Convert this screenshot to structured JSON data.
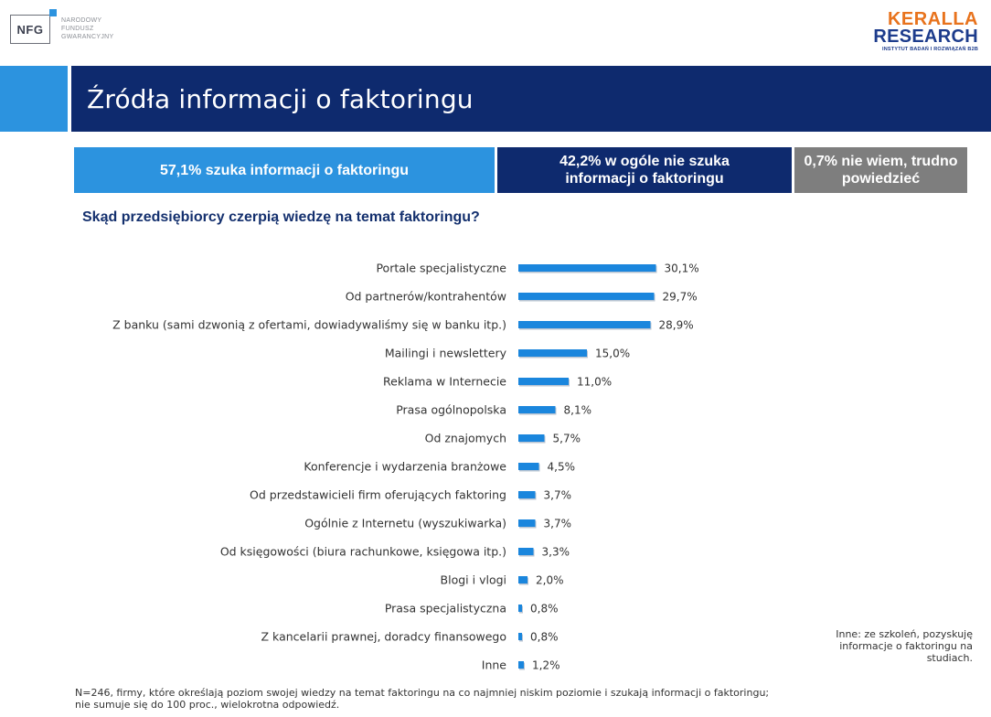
{
  "logo_nfg": {
    "abbr": "NFG",
    "lines": [
      "NARODOWY",
      "FUNDUSZ",
      "GWARANCYJNY"
    ]
  },
  "logo_keralla": {
    "line1": "KERALLA",
    "line2": "RESEARCH",
    "tagline": "INSTYTUT BADAŃ I ROZWIĄZAŃ B2B"
  },
  "colors": {
    "navy": "#0e2a6e",
    "blue": "#2c93df",
    "gray": "#7e7e7e",
    "bar": "#1a86dd"
  },
  "title": "Źródła informacji o faktoringu",
  "summary": [
    {
      "text": "57,1% szuka informacji o faktoringu"
    },
    {
      "text": "42,2% w ogóle nie szuka informacji o faktoringu"
    },
    {
      "text": "0,7% nie wiem, trudno powiedzieć"
    }
  ],
  "question": "Skąd przedsiębiorcy czerpią wiedzę na temat faktoringu?",
  "chart_data": {
    "type": "bar",
    "orientation": "horizontal",
    "categories": [
      "Portale specjalistyczne",
      "Od partnerów/kontrahentów",
      "Z banku (sami dzwonią z ofertami, dowiadywaliśmy się w banku itp.)",
      "Mailingi i newslettery",
      "Reklama w Internecie",
      "Prasa ogólnopolska",
      "Od znajomych",
      "Konferencje i wydarzenia branżowe",
      "Od przedstawicieli firm oferujących faktoring",
      "Ogólnie z Internetu (wyszukiwarka)",
      "Od księgowości (biura rachunkowe, księgowa itp.)",
      "Blogi i vlogi",
      "Prasa specjalistyczna",
      "Z kancelarii prawnej, doradcy finansowego",
      "Inne"
    ],
    "values": [
      30.1,
      29.7,
      28.9,
      15.0,
      11.0,
      8.1,
      5.7,
      4.5,
      3.7,
      3.7,
      3.3,
      2.0,
      0.8,
      0.8,
      1.2
    ],
    "value_labels": [
      "30,1%",
      "29,7%",
      "28,9%",
      "15,0%",
      "11,0%",
      "8,1%",
      "5,7%",
      "4,5%",
      "3,7%",
      "3,7%",
      "3,3%",
      "2,0%",
      "0,8%",
      "0,8%",
      "1,2%"
    ],
    "grid": false,
    "legend": "none"
  },
  "note_inne": "Inne: ze szkoleń, pozyskuję informacje o faktoringu na studiach.",
  "footnote": [
    "N=246, firmy, które określają poziom swojej wiedzy na temat faktoringu na co najmniej niskim poziomie i szukają informacji o faktoringu;",
    "nie sumuje się do 100 proc., wielokrotna odpowiedź."
  ]
}
